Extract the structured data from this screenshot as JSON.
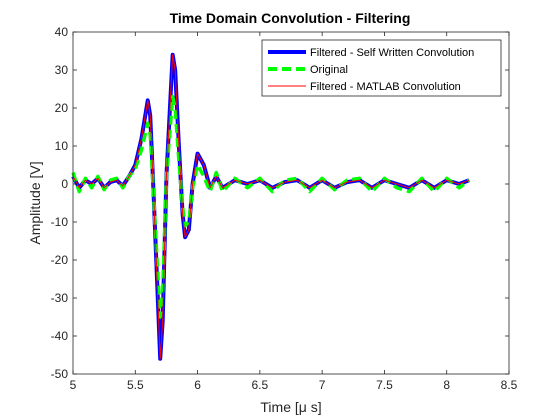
{
  "chart_data": {
    "type": "line",
    "title": "Time Domain Convolution - Filtering",
    "xlabel": "Time [μ s]",
    "ylabel": "Amplitude [V]",
    "xlim": [
      5,
      8.5
    ],
    "ylim": [
      -50,
      40
    ],
    "xticks": [
      5,
      5.5,
      6,
      6.5,
      7,
      7.5,
      8,
      8.5
    ],
    "yticks": [
      -50,
      -40,
      -30,
      -20,
      -10,
      0,
      10,
      20,
      30,
      40
    ],
    "xtick_labels": [
      "5",
      "5.5",
      "6",
      "6.5",
      "7",
      "7.5",
      "8",
      "8.5"
    ],
    "ytick_labels": [
      "-50",
      "-40",
      "-30",
      "-20",
      "-10",
      "0",
      "10",
      "20",
      "30",
      "40"
    ],
    "grid": false,
    "legend_position": "top-right",
    "series": [
      {
        "name": "Filtered - Self Written Convolution",
        "color": "#0000ff",
        "style": "solid-thick",
        "x": [
          5.0,
          5.05,
          5.1,
          5.15,
          5.2,
          5.25,
          5.3,
          5.35,
          5.4,
          5.45,
          5.5,
          5.55,
          5.6,
          5.62,
          5.65,
          5.7,
          5.72,
          5.75,
          5.8,
          5.82,
          5.85,
          5.88,
          5.9,
          5.93,
          5.96,
          6.0,
          6.05,
          6.1,
          6.15,
          6.2,
          6.3,
          6.4,
          6.5,
          6.6,
          6.7,
          6.8,
          6.9,
          7.0,
          7.1,
          7.2,
          7.3,
          7.4,
          7.5,
          7.6,
          7.7,
          7.8,
          7.9,
          8.0,
          8.1,
          8.18
        ],
        "y": [
          2,
          -1,
          1,
          0,
          1.5,
          -1,
          0.5,
          1,
          -0.5,
          2,
          5,
          12,
          22,
          18,
          -5,
          -46,
          -36,
          2,
          34,
          30,
          10,
          -8,
          -14,
          -12,
          0,
          8,
          5,
          -1,
          2,
          -1,
          1,
          0,
          1,
          -1,
          0.5,
          1,
          -1,
          1,
          -1,
          0.5,
          1,
          -1,
          1,
          0,
          -1,
          1,
          -1,
          1,
          0,
          1
        ]
      },
      {
        "name": "Original",
        "color": "#00ff00",
        "style": "dashed-thick",
        "x": [
          5.0,
          5.05,
          5.1,
          5.15,
          5.2,
          5.25,
          5.3,
          5.35,
          5.4,
          5.45,
          5.5,
          5.55,
          5.6,
          5.62,
          5.65,
          5.7,
          5.72,
          5.75,
          5.8,
          5.82,
          5.85,
          5.88,
          5.9,
          5.93,
          5.96,
          6.0,
          6.05,
          6.1,
          6.15,
          6.2,
          6.3,
          6.4,
          6.5,
          6.6,
          6.7,
          6.8,
          6.9,
          7.0,
          7.1,
          7.2,
          7.3,
          7.4,
          7.5,
          7.6,
          7.7,
          7.8,
          7.9,
          8.0,
          8.1,
          8.18
        ],
        "y": [
          3,
          -2,
          1.5,
          -1,
          2,
          -1.5,
          1,
          1.5,
          -1,
          2,
          4,
          9,
          16,
          13,
          -5,
          -35,
          -28,
          2,
          23,
          20,
          6,
          -6,
          -11,
          -10,
          -1,
          5,
          2,
          -2,
          3,
          -2,
          1.5,
          -1,
          1.5,
          -2,
          1,
          1.5,
          -2,
          1.5,
          -1.5,
          1,
          1.5,
          -2,
          1.5,
          -1,
          -2,
          1.5,
          -2,
          1.5,
          -1,
          1
        ]
      },
      {
        "name": "Filtered - MATLAB Convolution",
        "color": "#ff0000",
        "style": "solid-thin",
        "x": [
          5.0,
          5.05,
          5.1,
          5.15,
          5.2,
          5.25,
          5.3,
          5.35,
          5.4,
          5.45,
          5.5,
          5.55,
          5.6,
          5.62,
          5.65,
          5.7,
          5.72,
          5.75,
          5.8,
          5.82,
          5.85,
          5.88,
          5.9,
          5.93,
          5.96,
          6.0,
          6.05,
          6.1,
          6.15,
          6.2,
          6.3,
          6.4,
          6.5,
          6.6,
          6.7,
          6.8,
          6.9,
          7.0,
          7.1,
          7.2,
          7.3,
          7.4,
          7.5,
          7.6,
          7.7,
          7.8,
          7.9,
          8.0,
          8.1,
          8.18
        ],
        "y": [
          2,
          -1,
          1,
          0,
          1.5,
          -1,
          0.5,
          1,
          -0.5,
          2,
          5,
          12,
          22,
          18,
          -5,
          -46,
          -36,
          2,
          34,
          30,
          10,
          -8,
          -14,
          -12,
          0,
          8,
          5,
          -1,
          2,
          -1,
          1,
          0,
          1,
          -1,
          0.5,
          1,
          -1,
          1,
          -1,
          0.5,
          1,
          -1,
          1,
          0,
          -1,
          1,
          -1,
          1,
          0,
          1
        ]
      }
    ]
  }
}
